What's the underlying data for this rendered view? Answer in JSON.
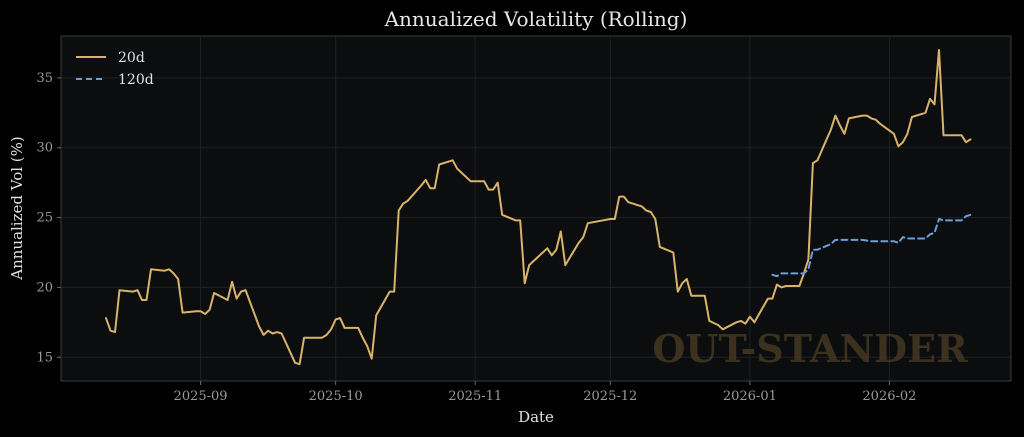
{
  "chart_data": {
    "type": "line",
    "title": "Annualized Volatility (Rolling)",
    "xlabel": "Date",
    "ylabel": "Annualized Vol (%)",
    "x_domain": [
      "2025-08-01",
      "2026-02-28"
    ],
    "ylim": [
      13.3,
      38
    ],
    "x_ticks": [
      {
        "date": "2025-09-01",
        "label": "2025-09"
      },
      {
        "date": "2025-10-01",
        "label": "2025-10"
      },
      {
        "date": "2025-11-01",
        "label": "2025-11"
      },
      {
        "date": "2025-12-01",
        "label": "2025-12"
      },
      {
        "date": "2026-01-01",
        "label": "2026-01"
      },
      {
        "date": "2026-02-01",
        "label": "2026-02"
      }
    ],
    "y_ticks": [
      15,
      20,
      25,
      30,
      35
    ],
    "grid": true,
    "legend_position": "top-left",
    "watermark": "OUT-STANDER",
    "series": [
      {
        "name": "20d",
        "color": "#d9b36a",
        "dash": "solid",
        "points": [
          [
            "2025-08-11",
            17.8
          ],
          [
            "2025-08-12",
            16.9
          ],
          [
            "2025-08-13",
            16.8
          ],
          [
            "2025-08-14",
            19.8
          ],
          [
            "2025-08-17",
            19.7
          ],
          [
            "2025-08-18",
            19.8
          ],
          [
            "2025-08-19",
            19.1
          ],
          [
            "2025-08-20",
            19.1
          ],
          [
            "2025-08-21",
            21.3
          ],
          [
            "2025-08-24",
            21.2
          ],
          [
            "2025-08-25",
            21.3
          ],
          [
            "2025-08-26",
            21.0
          ],
          [
            "2025-08-27",
            20.6
          ],
          [
            "2025-08-28",
            18.2
          ],
          [
            "2025-08-31",
            18.3
          ],
          [
            "2025-09-01",
            18.3
          ],
          [
            "2025-09-02",
            18.1
          ],
          [
            "2025-09-03",
            18.4
          ],
          [
            "2025-09-04",
            19.6
          ],
          [
            "2025-09-07",
            19.1
          ],
          [
            "2025-09-08",
            20.4
          ],
          [
            "2025-09-09",
            19.2
          ],
          [
            "2025-09-10",
            19.7
          ],
          [
            "2025-09-11",
            19.8
          ],
          [
            "2025-09-14",
            17.2
          ],
          [
            "2025-09-15",
            16.6
          ],
          [
            "2025-09-16",
            16.9
          ],
          [
            "2025-09-17",
            16.7
          ],
          [
            "2025-09-18",
            16.8
          ],
          [
            "2025-09-19",
            16.7
          ],
          [
            "2025-09-22",
            14.6
          ],
          [
            "2025-09-23",
            14.5
          ],
          [
            "2025-09-24",
            16.4
          ],
          [
            "2025-09-28",
            16.4
          ],
          [
            "2025-09-29",
            16.6
          ],
          [
            "2025-09-30",
            17.0
          ],
          [
            "2025-10-01",
            17.7
          ],
          [
            "2025-10-02",
            17.8
          ],
          [
            "2025-10-03",
            17.1
          ],
          [
            "2025-10-06",
            17.1
          ],
          [
            "2025-10-07",
            16.4
          ],
          [
            "2025-10-08",
            15.8
          ],
          [
            "2025-10-09",
            14.9
          ],
          [
            "2025-10-10",
            18.0
          ],
          [
            "2025-10-13",
            19.7
          ],
          [
            "2025-10-14",
            19.7
          ],
          [
            "2025-10-15",
            25.5
          ],
          [
            "2025-10-16",
            26.0
          ],
          [
            "2025-10-17",
            26.2
          ],
          [
            "2025-10-20",
            27.3
          ],
          [
            "2025-10-21",
            27.7
          ],
          [
            "2025-10-22",
            27.1
          ],
          [
            "2025-10-23",
            27.1
          ],
          [
            "2025-10-24",
            28.8
          ],
          [
            "2025-10-27",
            29.1
          ],
          [
            "2025-10-28",
            28.5
          ],
          [
            "2025-10-29",
            28.2
          ],
          [
            "2025-10-31",
            27.6
          ],
          [
            "2025-11-03",
            27.6
          ],
          [
            "2025-11-04",
            27.0
          ],
          [
            "2025-11-05",
            27.0
          ],
          [
            "2025-11-06",
            27.5
          ],
          [
            "2025-11-07",
            25.2
          ],
          [
            "2025-11-10",
            24.8
          ],
          [
            "2025-11-11",
            24.8
          ],
          [
            "2025-11-12",
            20.3
          ],
          [
            "2025-11-13",
            21.6
          ],
          [
            "2025-11-14",
            21.9
          ],
          [
            "2025-11-17",
            22.8
          ],
          [
            "2025-11-18",
            22.3
          ],
          [
            "2025-11-19",
            22.7
          ],
          [
            "2025-11-20",
            24.0
          ],
          [
            "2025-11-21",
            21.6
          ],
          [
            "2025-11-24",
            23.2
          ],
          [
            "2025-11-25",
            23.6
          ],
          [
            "2025-11-26",
            24.6
          ],
          [
            "2025-12-01",
            24.9
          ],
          [
            "2025-12-02",
            24.9
          ],
          [
            "2025-12-03",
            26.5
          ],
          [
            "2025-12-04",
            26.5
          ],
          [
            "2025-12-05",
            26.1
          ],
          [
            "2025-12-08",
            25.8
          ],
          [
            "2025-12-09",
            25.5
          ],
          [
            "2025-12-10",
            25.4
          ],
          [
            "2025-12-11",
            24.9
          ],
          [
            "2025-12-12",
            22.9
          ],
          [
            "2025-12-15",
            22.5
          ],
          [
            "2025-12-16",
            19.7
          ],
          [
            "2025-12-17",
            20.3
          ],
          [
            "2025-12-18",
            20.6
          ],
          [
            "2025-12-19",
            19.4
          ],
          [
            "2025-12-22",
            19.4
          ],
          [
            "2025-12-23",
            17.6
          ],
          [
            "2025-12-25",
            17.3
          ],
          [
            "2025-12-26",
            17.0
          ],
          [
            "2025-12-29",
            17.5
          ],
          [
            "2025-12-30",
            17.6
          ],
          [
            "2025-12-31",
            17.4
          ],
          [
            "2026-01-01",
            17.9
          ],
          [
            "2026-01-02",
            17.5
          ],
          [
            "2026-01-05",
            19.2
          ],
          [
            "2026-01-06",
            19.2
          ],
          [
            "2026-01-07",
            20.2
          ],
          [
            "2026-01-08",
            20.0
          ],
          [
            "2026-01-09",
            20.1
          ],
          [
            "2026-01-12",
            20.1
          ],
          [
            "2026-01-13",
            21.0
          ],
          [
            "2026-01-14",
            22.0
          ],
          [
            "2026-01-15",
            28.9
          ],
          [
            "2026-01-16",
            29.1
          ],
          [
            "2026-01-19",
            31.3
          ],
          [
            "2026-01-20",
            32.3
          ],
          [
            "2026-01-21",
            31.6
          ],
          [
            "2026-01-22",
            31.0
          ],
          [
            "2026-01-23",
            32.1
          ],
          [
            "2026-01-26",
            32.3
          ],
          [
            "2026-01-27",
            32.3
          ],
          [
            "2026-01-28",
            32.1
          ],
          [
            "2026-01-29",
            32.0
          ],
          [
            "2026-01-30",
            31.7
          ],
          [
            "2026-02-02",
            31.0
          ],
          [
            "2026-02-03",
            30.1
          ],
          [
            "2026-02-04",
            30.4
          ],
          [
            "2026-02-05",
            31.0
          ],
          [
            "2026-02-06",
            32.2
          ],
          [
            "2026-02-09",
            32.5
          ],
          [
            "2026-02-10",
            33.5
          ],
          [
            "2026-02-11",
            33.1
          ],
          [
            "2026-02-12",
            37.0
          ],
          [
            "2026-02-13",
            30.9
          ],
          [
            "2026-02-16",
            30.9
          ],
          [
            "2026-02-17",
            30.9
          ],
          [
            "2026-02-18",
            30.4
          ],
          [
            "2026-02-19",
            30.6
          ]
        ]
      },
      {
        "name": "120d",
        "color": "#6a9fd8",
        "dash": "dashed",
        "points": [
          [
            "2026-01-06",
            20.9
          ],
          [
            "2026-01-07",
            20.8
          ],
          [
            "2026-01-08",
            21.0
          ],
          [
            "2026-01-09",
            21.0
          ],
          [
            "2026-01-12",
            21.0
          ],
          [
            "2026-01-13",
            21.0
          ],
          [
            "2026-01-14",
            21.3
          ],
          [
            "2026-01-15",
            22.7
          ],
          [
            "2026-01-16",
            22.7
          ],
          [
            "2026-01-19",
            23.1
          ],
          [
            "2026-01-20",
            23.4
          ],
          [
            "2026-01-22",
            23.4
          ],
          [
            "2026-01-26",
            23.4
          ],
          [
            "2026-01-28",
            23.3
          ],
          [
            "2026-01-30",
            23.3
          ],
          [
            "2026-02-02",
            23.3
          ],
          [
            "2026-02-03",
            23.2
          ],
          [
            "2026-02-04",
            23.6
          ],
          [
            "2026-02-05",
            23.5
          ],
          [
            "2026-02-09",
            23.5
          ],
          [
            "2026-02-10",
            23.8
          ],
          [
            "2026-02-11",
            23.9
          ],
          [
            "2026-02-12",
            24.9
          ],
          [
            "2026-02-13",
            24.8
          ],
          [
            "2026-02-16",
            24.8
          ],
          [
            "2026-02-17",
            24.8
          ],
          [
            "2026-02-18",
            25.1
          ],
          [
            "2026-02-19",
            25.2
          ]
        ]
      }
    ]
  }
}
